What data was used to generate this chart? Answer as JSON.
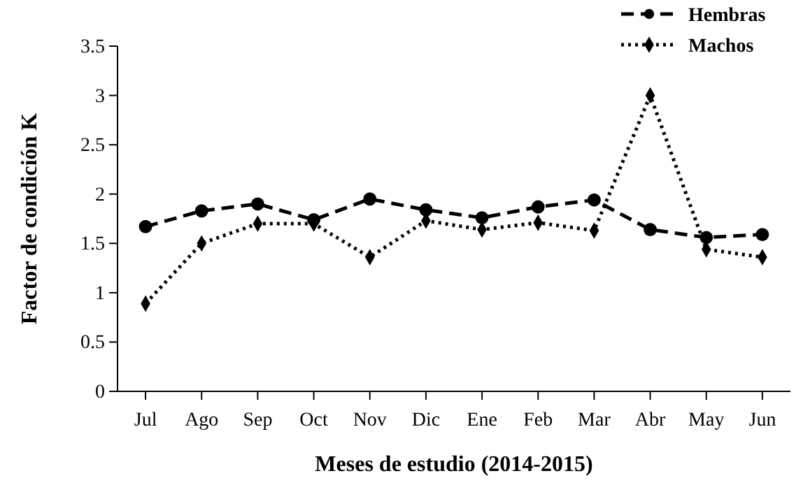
{
  "chart_data": {
    "type": "line",
    "xlabel": "Meses de estudio (2014-2015)",
    "ylabel": "Factor de condición K",
    "categories": [
      "Jul",
      "Ago",
      "Sep",
      "Oct",
      "Nov",
      "Dic",
      "Ene",
      "Feb",
      "Mar",
      "Abr",
      "May",
      "Jun"
    ],
    "series": [
      {
        "name": "Hembras",
        "color": "#000000",
        "line_style": "dashed",
        "marker": "circle",
        "values": [
          1.67,
          1.83,
          1.9,
          1.74,
          1.95,
          1.84,
          1.76,
          1.87,
          1.94,
          1.64,
          1.56,
          1.59
        ]
      },
      {
        "name": "Machos",
        "color": "#000000",
        "line_style": "dotted",
        "marker": "diamond",
        "values": [
          0.89,
          1.5,
          1.7,
          1.7,
          1.36,
          1.73,
          1.64,
          1.71,
          1.63,
          3.0,
          1.44,
          1.36
        ]
      }
    ],
    "ylim": [
      0,
      3.5
    ],
    "yticks": [
      0,
      0.5,
      1,
      1.5,
      2,
      2.5,
      3,
      3.5
    ],
    "grid": false,
    "legend": "top right"
  }
}
